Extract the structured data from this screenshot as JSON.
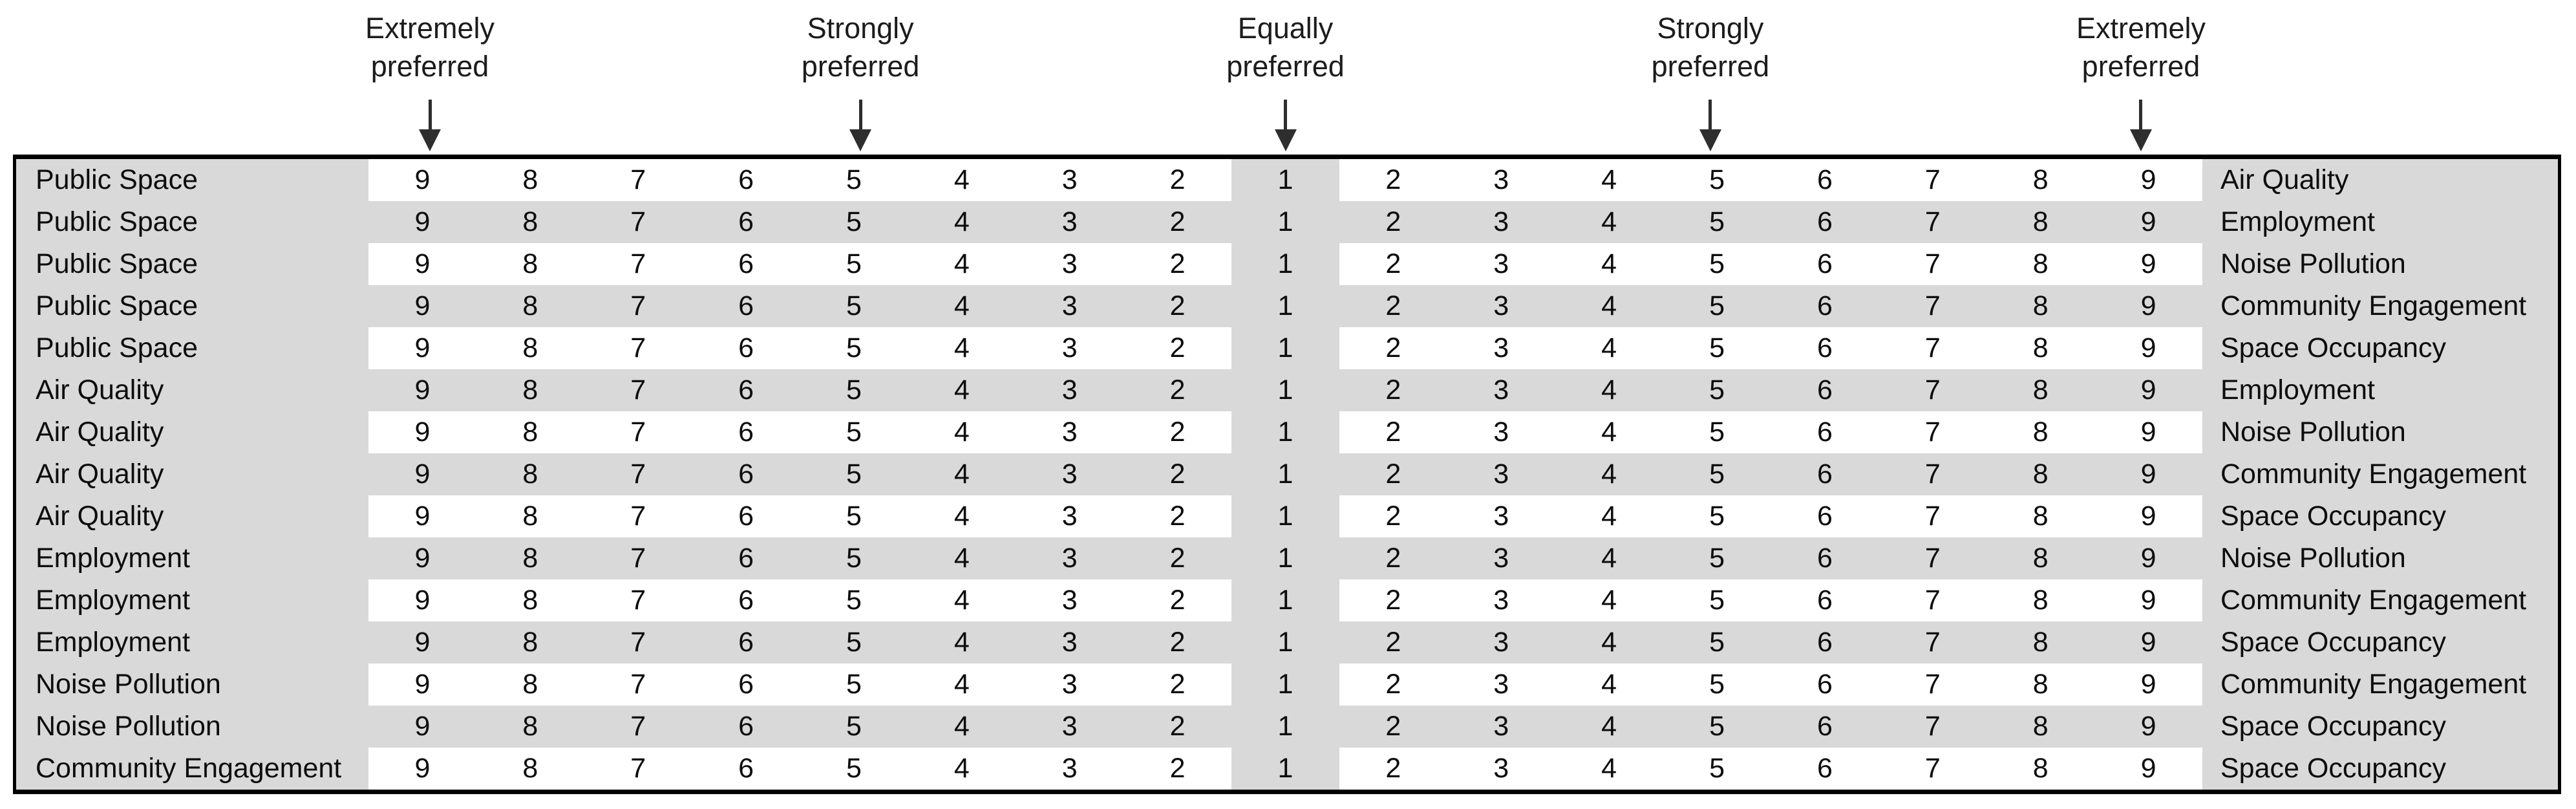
{
  "form": {
    "name": "pairwise comparison preference scale",
    "scale_values": [
      "9",
      "8",
      "7",
      "6",
      "5",
      "4",
      "3",
      "2",
      "1",
      "2",
      "3",
      "4",
      "5",
      "6",
      "7",
      "8",
      "9"
    ],
    "scale_markers": [
      {
        "line1": "Extremely",
        "line2": "preferred",
        "points_to_value": "9",
        "side": "left",
        "column_index": 0
      },
      {
        "line1": "Strongly",
        "line2": "preferred",
        "points_to_value": "5",
        "side": "left",
        "column_index": 4
      },
      {
        "line1": "Equally",
        "line2": "preferred",
        "points_to_value": "1",
        "side": "center",
        "column_index": 8
      },
      {
        "line1": "Strongly",
        "line2": "preferred",
        "points_to_value": "5",
        "side": "right",
        "column_index": 12
      },
      {
        "line1": "Extremely",
        "line2": "preferred",
        "points_to_value": "9",
        "side": "right",
        "column_index": 16
      }
    ],
    "rows": [
      {
        "left": "Public Space",
        "right": "Air Quality"
      },
      {
        "left": "Public Space",
        "right": "Employment"
      },
      {
        "left": "Public Space",
        "right": "Noise Pollution"
      },
      {
        "left": "Public Space",
        "right": "Community Engagement"
      },
      {
        "left": "Public Space",
        "right": "Space Occupancy"
      },
      {
        "left": "Air Quality",
        "right": "Employment"
      },
      {
        "left": "Air Quality",
        "right": "Noise Pollution"
      },
      {
        "left": "Air Quality",
        "right": "Community Engagement"
      },
      {
        "left": "Air Quality",
        "right": "Space Occupancy"
      },
      {
        "left": "Employment",
        "right": "Noise Pollution"
      },
      {
        "left": "Employment",
        "right": "Community Engagement"
      },
      {
        "left": "Employment",
        "right": "Space Occupancy"
      },
      {
        "left": "Noise Pollution",
        "right": "Community Engagement"
      },
      {
        "left": "Noise Pollution",
        "right": "Space Occupancy"
      },
      {
        "left": "Community Engagement",
        "right": "Space Occupancy"
      }
    ],
    "colors": {
      "shaded_cell": "#d9d9d9",
      "border": "#000000",
      "text": "#141414"
    }
  }
}
